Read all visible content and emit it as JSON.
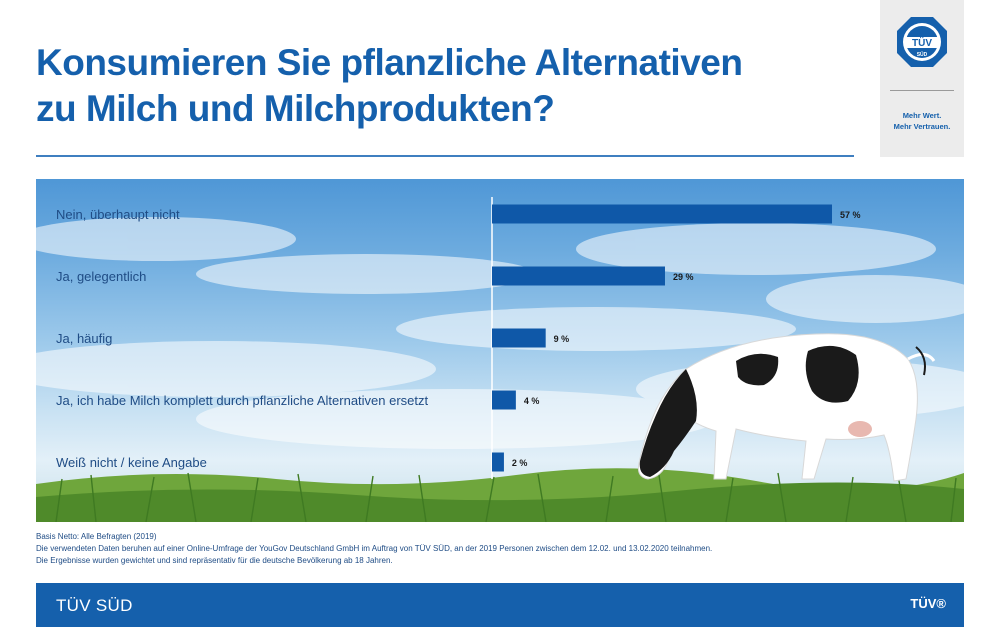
{
  "title": {
    "line1": "Konsumieren Sie pflanzliche Alternativen",
    "line2": "zu Milch und Milchprodukten?"
  },
  "logo": {
    "badge_text": "TÜV",
    "badge_sub": "SÜD",
    "slogan_line1": "Mehr Wert.",
    "slogan_line2": "Mehr Vertrauen."
  },
  "chart_data": {
    "type": "bar",
    "orientation": "horizontal",
    "categories": [
      "Nein, überhaupt nicht",
      "Ja, gelegentlich",
      "Ja, häufig",
      "Ja, ich habe Milch komplett durch pflanzliche Alternativen ersetzt",
      "Weiß nicht / keine Angabe"
    ],
    "values": [
      57,
      29,
      9,
      4,
      2
    ],
    "value_labels": [
      "57 %",
      "29 %",
      "9 %",
      "4 %",
      "2 %"
    ],
    "unit": "%",
    "bar_color": "#0f58a8",
    "axis_line": true,
    "grid": false
  },
  "footnotes": {
    "base": "Basis Netto: Alle Befragten (2019)",
    "source": "Die verwendeten Daten beruhen auf einer Online-Umfrage der YouGov Deutschland GmbH im Auftrag von TÜV SÜD, an der 2019 Personen zwischen dem 12.02. und 13.02.2020 teilnahmen.",
    "weighting": "Die Ergebnisse wurden gewichtet und sind repräsentativ für die deutsche Bevölkerung ab 18 Jahren."
  },
  "footer": {
    "brand": "TÜV SÜD",
    "mark": "TÜV®"
  },
  "colors": {
    "brand_blue": "#1560ac",
    "bar_blue": "#0f58a8",
    "label_blue": "#1f4c85"
  }
}
